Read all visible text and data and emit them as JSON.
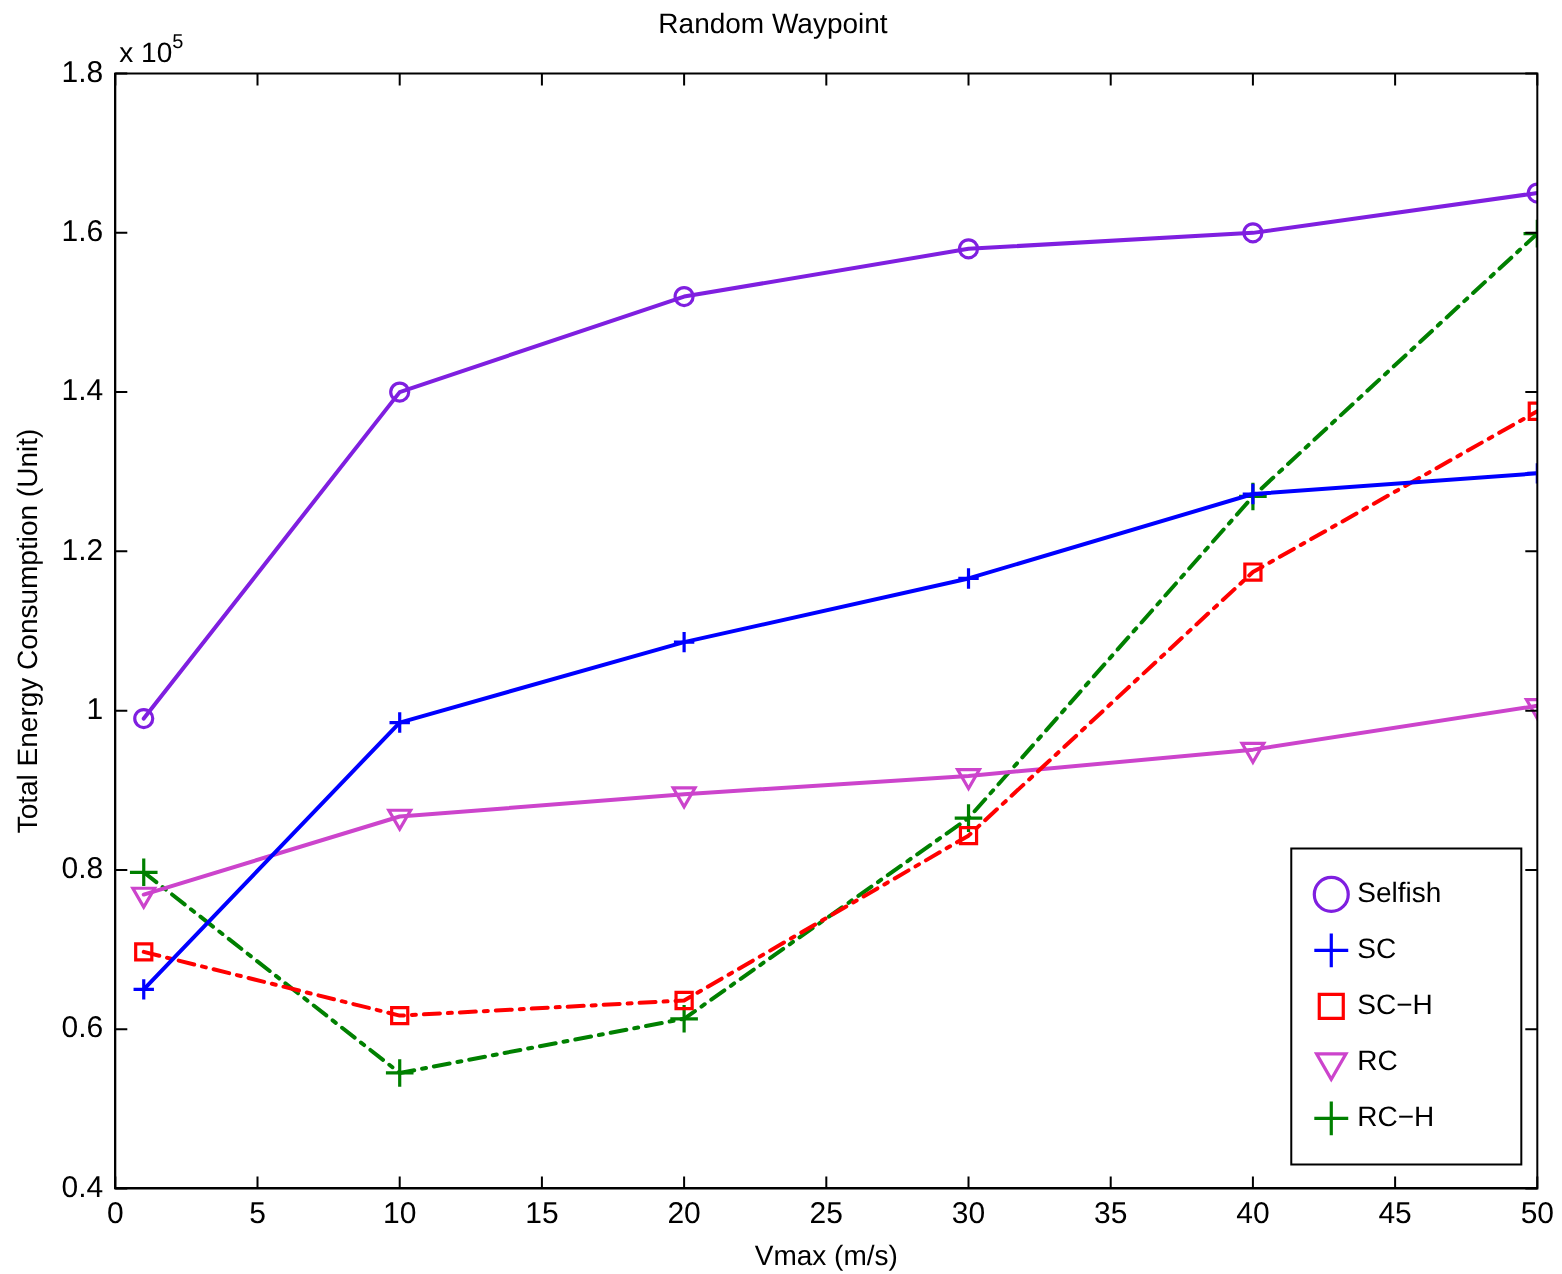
{
  "chart_data": {
    "type": "line",
    "title": "Random Waypoint",
    "xlabel": "Vmax (m/s)",
    "ylabel": "Total Energy Consumption (Unit)",
    "annotations": [
      "x 10$^{5}$"
    ],
    "x": [
      1,
      10,
      20,
      30,
      40,
      50
    ],
    "series": [
      {
        "name": "Selfish",
        "color": "#7f1fe0",
        "marker": "circle",
        "line_style": "solid",
        "values": [
          0.99,
          1.4,
          1.52,
          1.58,
          1.6,
          1.65
        ]
      },
      {
        "name": "SC",
        "color": "#0000ff",
        "marker": "cross",
        "line_style": "solid",
        "values": [
          0.65,
          0.985,
          1.086,
          1.166,
          1.272,
          1.298
        ]
      },
      {
        "name": "SC−H",
        "color": "#ff0000",
        "marker": "square",
        "line_style": "dashed",
        "values": [
          0.697,
          0.617,
          0.636,
          0.843,
          1.174,
          1.376
        ]
      },
      {
        "name": "RC",
        "color": "#cc44cc",
        "marker": "triangle",
        "line_style": "solid",
        "values": [
          0.769,
          0.867,
          0.895,
          0.918,
          0.951,
          1.006
        ]
      },
      {
        "name": "RC−H",
        "color": "#008000",
        "marker": "cross",
        "line_style": "dashed",
        "values": [
          0.797,
          0.545,
          0.613,
          0.865,
          1.269,
          1.599
        ]
      }
    ],
    "xlim": [
      0,
      50
    ],
    "xticks": [
      0,
      5,
      10,
      15,
      20,
      25,
      30,
      35,
      40,
      45,
      50
    ],
    "ylim": [
      0.4,
      1.8
    ],
    "yticks": [
      0.4,
      0.6,
      0.8,
      1,
      1.2,
      1.4,
      1.6,
      1.8
    ],
    "grid": false,
    "legend": "bottom right"
  }
}
